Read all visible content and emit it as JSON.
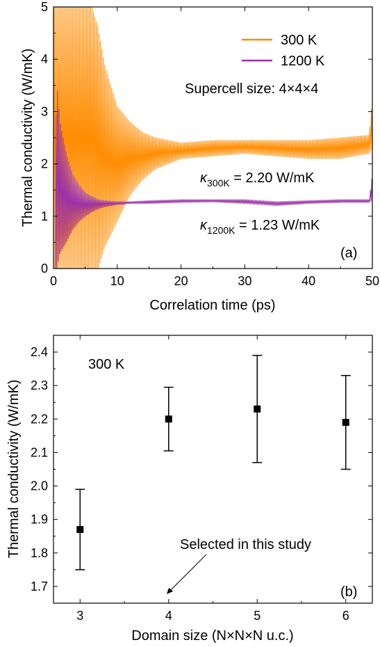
{
  "chart_data": [
    {
      "type": "line",
      "panel_label": "(a)",
      "xlabel": "Correlation time (ps)",
      "ylabel": "Thermal conductivity (W/mK)",
      "xlim": [
        0,
        50
      ],
      "ylim": [
        0,
        5
      ],
      "xticks": [
        0,
        10,
        20,
        30,
        40,
        50
      ],
      "yticks": [
        0,
        1,
        2,
        3,
        4,
        5
      ],
      "legend_position": "top-right",
      "annotation": "Supercell size: 4×4×4",
      "series": [
        {
          "name": "300 K",
          "color": "#ff8c00",
          "oscillating": true,
          "envelope": {
            "t": [
              0,
              1,
              2,
              3,
              4,
              5,
              6,
              7,
              8,
              10,
              12,
              14,
              16,
              18,
              20,
              25,
              30,
              35,
              40,
              45,
              49.5,
              50
            ],
            "low": [
              0.0,
              0.0,
              0.0,
              0.0,
              0.0,
              0.0,
              0.0,
              0.0,
              0.4,
              0.9,
              1.4,
              1.7,
              1.9,
              2.0,
              2.1,
              2.15,
              2.2,
              2.15,
              2.1,
              2.1,
              2.2,
              2.3
            ],
            "high": [
              5.0,
              5.0,
              5.0,
              5.0,
              5.0,
              5.0,
              5.0,
              4.6,
              3.9,
              3.1,
              2.8,
              2.6,
              2.5,
              2.45,
              2.4,
              2.45,
              2.45,
              2.45,
              2.45,
              2.5,
              2.55,
              3.3
            ]
          },
          "value_label": "2.20 W/mK"
        },
        {
          "name": "1200 K",
          "color": "#9b30a8",
          "oscillating": true,
          "envelope": {
            "t": [
              0,
              0.5,
              1,
              2,
              3,
              4,
              5,
              6,
              7,
              8,
              10,
              12,
              15,
              20,
              25,
              30,
              35,
              40,
              45,
              49.5,
              50
            ],
            "low": [
              0.0,
              0.0,
              0.3,
              0.5,
              0.75,
              0.9,
              1.0,
              1.08,
              1.14,
              1.18,
              1.22,
              1.24,
              1.24,
              1.26,
              1.27,
              1.24,
              1.2,
              1.24,
              1.26,
              1.26,
              1.3
            ],
            "high": [
              0.0,
              3.6,
              2.8,
              2.2,
              1.8,
              1.6,
              1.45,
              1.38,
              1.32,
              1.3,
              1.28,
              1.28,
              1.3,
              1.32,
              1.32,
              1.32,
              1.28,
              1.3,
              1.32,
              1.32,
              1.8
            ]
          },
          "value_label": "1.23 W/mK"
        }
      ],
      "labels": {
        "kappa_symbol": "κ",
        "kappa_300_sub": "300K",
        "kappa_300_value": " = 2.20 W/mK",
        "kappa_1200_sub": "1200K",
        "kappa_1200_value": " = 1.23 W/mK"
      }
    },
    {
      "type": "scatter",
      "panel_label": "(b)",
      "xlabel": "Domain size (N×N×N u.c.)",
      "ylabel": "Thermal conductivity (W/mK)",
      "xlim": [
        2.7,
        6.3
      ],
      "ylim": [
        1.65,
        2.45
      ],
      "xticks": [
        3,
        4,
        5,
        6
      ],
      "yticks": [
        1.7,
        1.8,
        1.9,
        2.0,
        2.1,
        2.2,
        2.3,
        2.4
      ],
      "annotation": "300 K",
      "arrow_annotation": "Selected in this study",
      "arrow_points_to_x": 4,
      "points": [
        {
          "x": 3,
          "y": 1.87,
          "err_low": 1.75,
          "err_high": 1.99
        },
        {
          "x": 4,
          "y": 2.2,
          "err_low": 2.105,
          "err_high": 2.295
        },
        {
          "x": 5,
          "y": 2.23,
          "err_low": 2.07,
          "err_high": 2.39
        },
        {
          "x": 6,
          "y": 2.19,
          "err_low": 2.05,
          "err_high": 2.33
        }
      ]
    }
  ]
}
